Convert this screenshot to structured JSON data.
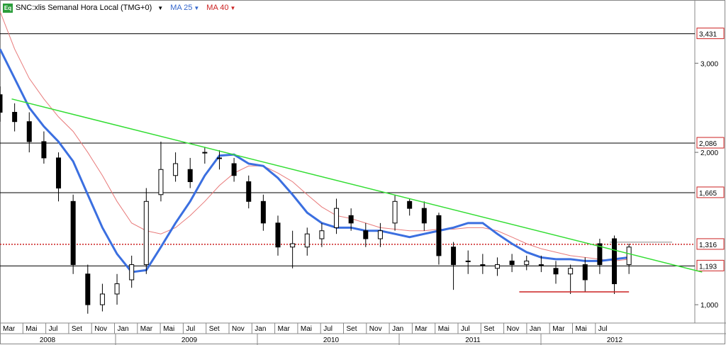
{
  "header": {
    "symbol_label": "SNC:xlis Semanal Hora Local (TMG+0)",
    "eq_icon": "Eq",
    "ma25_label": "MA 25",
    "ma40_label": "MA 40"
  },
  "colors": {
    "ma25": "#3b6fe0",
    "ma40": "#e87a7a",
    "trendline": "#33dd33",
    "support": "#cc2222",
    "dotted": "#cc2222",
    "candle": "#000000"
  },
  "chart_data": {
    "type": "candlestick",
    "y_scale": "log",
    "ylim": [
      0.92,
      4.0
    ],
    "y_ticks": [
      "3,000",
      "2,000",
      "1,000"
    ],
    "y_tick_values": [
      3.0,
      2.0,
      1.0
    ],
    "horizontal_levels": [
      {
        "value": 3.431,
        "label": "3,431",
        "style": "solid"
      },
      {
        "value": 2.086,
        "label": "2,086",
        "style": "solid"
      },
      {
        "value": 1.665,
        "label": "1,665",
        "style": "solid"
      },
      {
        "value": 1.316,
        "label": "1,316",
        "style": "dotted"
      },
      {
        "value": 1.193,
        "label": "1,193",
        "style": "solid"
      }
    ],
    "x_month_labels": [
      "Mar",
      "Mai",
      "Jul",
      "Set",
      "Nov",
      "Jan",
      "Mar",
      "Mai",
      "Jul",
      "Set",
      "Nov",
      "Jan",
      "Mar",
      "Mai",
      "Jul",
      "Set",
      "Nov",
      "Jan",
      "Mar",
      "Mai",
      "Jul",
      "Set",
      "Nov",
      "Jan",
      "Mar",
      "Mai",
      "Jul"
    ],
    "x_year_labels": [
      "2008",
      "2009",
      "2010",
      "2011",
      "2012"
    ],
    "trendline": {
      "x": [
        2008.08,
        2012.8
      ],
      "y": [
        2.55,
        1.16
      ]
    },
    "support_line": {
      "x": [
        2011.55,
        2012.3
      ],
      "y": [
        1.06,
        1.06
      ]
    },
    "ma25": {
      "x": [
        2008.0,
        2008.1,
        2008.2,
        2008.3,
        2008.4,
        2008.5,
        2008.6,
        2008.7,
        2008.8,
        2008.9,
        2009.0,
        2009.1,
        2009.2,
        2009.3,
        2009.4,
        2009.5,
        2009.6,
        2009.7,
        2009.8,
        2009.9,
        2010.0,
        2010.1,
        2010.2,
        2010.3,
        2010.4,
        2010.5,
        2010.6,
        2010.7,
        2010.8,
        2010.9,
        2011.0,
        2011.1,
        2011.2,
        2011.3,
        2011.4,
        2011.5,
        2011.6,
        2011.7,
        2011.8,
        2011.9,
        2012.0,
        2012.1,
        2012.2,
        2012.3
      ],
      "y": [
        3.2,
        2.8,
        2.45,
        2.25,
        2.1,
        1.92,
        1.65,
        1.42,
        1.26,
        1.16,
        1.17,
        1.3,
        1.45,
        1.6,
        1.8,
        1.97,
        1.98,
        1.9,
        1.88,
        1.78,
        1.65,
        1.52,
        1.45,
        1.42,
        1.42,
        1.4,
        1.4,
        1.38,
        1.36,
        1.38,
        1.4,
        1.42,
        1.45,
        1.45,
        1.38,
        1.32,
        1.27,
        1.24,
        1.23,
        1.23,
        1.22,
        1.22,
        1.23,
        1.24
      ]
    },
    "ma40": {
      "x": [
        2008.0,
        2008.1,
        2008.2,
        2008.3,
        2008.4,
        2008.5,
        2008.6,
        2008.7,
        2008.8,
        2008.9,
        2009.0,
        2009.1,
        2009.2,
        2009.3,
        2009.4,
        2009.5,
        2009.6,
        2009.7,
        2009.8,
        2009.9,
        2010.0,
        2010.1,
        2010.2,
        2010.3,
        2010.4,
        2010.5,
        2010.6,
        2010.7,
        2010.8,
        2010.9,
        2011.0,
        2011.1,
        2011.2,
        2011.3,
        2011.4,
        2011.5,
        2011.6,
        2011.7,
        2011.8,
        2011.9,
        2012.0,
        2012.1,
        2012.2,
        2012.3
      ],
      "y": [
        3.8,
        3.2,
        2.8,
        2.55,
        2.35,
        2.2,
        2.0,
        1.8,
        1.6,
        1.45,
        1.4,
        1.38,
        1.42,
        1.5,
        1.6,
        1.72,
        1.82,
        1.88,
        1.88,
        1.82,
        1.75,
        1.65,
        1.56,
        1.5,
        1.48,
        1.45,
        1.42,
        1.41,
        1.4,
        1.4,
        1.41,
        1.41,
        1.42,
        1.42,
        1.4,
        1.36,
        1.32,
        1.29,
        1.27,
        1.25,
        1.24,
        1.23,
        1.22,
        1.23
      ]
    },
    "candles": {
      "x": [
        2008.0,
        2008.1,
        2008.2,
        2008.3,
        2008.4,
        2008.5,
        2008.6,
        2008.7,
        2008.8,
        2008.9,
        2009.0,
        2009.1,
        2009.2,
        2009.3,
        2009.4,
        2009.5,
        2009.6,
        2009.7,
        2009.8,
        2009.9,
        2010.0,
        2010.1,
        2010.2,
        2010.3,
        2010.4,
        2010.5,
        2010.6,
        2010.7,
        2010.8,
        2010.9,
        2011.0,
        2011.1,
        2011.2,
        2011.3,
        2011.4,
        2011.5,
        2011.6,
        2011.7,
        2011.8,
        2011.9,
        2012.0,
        2012.1,
        2012.2,
        2012.3
      ],
      "open": [
        2.6,
        2.4,
        2.3,
        2.1,
        1.95,
        1.6,
        1.15,
        1.0,
        1.05,
        1.12,
        1.2,
        1.65,
        1.8,
        1.85,
        2.0,
        1.95,
        1.9,
        1.75,
        1.6,
        1.45,
        1.3,
        1.3,
        1.35,
        1.42,
        1.5,
        1.4,
        1.35,
        1.45,
        1.6,
        1.55,
        1.5,
        1.3,
        1.22,
        1.2,
        1.18,
        1.22,
        1.2,
        1.2,
        1.18,
        1.15,
        1.2,
        1.32,
        1.35,
        1.2
      ],
      "close": [
        2.4,
        2.3,
        2.1,
        1.95,
        1.7,
        1.2,
        1.0,
        1.05,
        1.1,
        1.2,
        1.6,
        1.85,
        1.9,
        1.75,
        2.0,
        1.95,
        1.8,
        1.6,
        1.45,
        1.3,
        1.32,
        1.38,
        1.4,
        1.55,
        1.45,
        1.35,
        1.4,
        1.6,
        1.55,
        1.45,
        1.25,
        1.2,
        1.22,
        1.2,
        1.2,
        1.2,
        1.22,
        1.2,
        1.15,
        1.18,
        1.12,
        1.2,
        1.1,
        1.3
      ],
      "high": [
        2.7,
        2.5,
        2.4,
        2.2,
        2.0,
        1.65,
        1.2,
        1.1,
        1.15,
        1.25,
        1.7,
        2.1,
        2.0,
        1.95,
        2.05,
        2.02,
        1.95,
        1.8,
        1.65,
        1.5,
        1.4,
        1.42,
        1.45,
        1.62,
        1.55,
        1.45,
        1.45,
        1.65,
        1.62,
        1.6,
        1.52,
        1.33,
        1.28,
        1.26,
        1.24,
        1.26,
        1.25,
        1.25,
        1.22,
        1.2,
        1.24,
        1.35,
        1.37,
        1.32
      ],
      "low": [
        2.3,
        2.2,
        2.0,
        1.9,
        1.6,
        1.15,
        0.96,
        0.97,
        1.0,
        1.08,
        1.15,
        1.6,
        1.75,
        1.7,
        1.9,
        1.85,
        1.75,
        1.55,
        1.4,
        1.25,
        1.18,
        1.25,
        1.3,
        1.38,
        1.4,
        1.3,
        1.3,
        1.4,
        1.5,
        1.4,
        1.2,
        1.07,
        1.15,
        1.15,
        1.14,
        1.16,
        1.17,
        1.16,
        1.1,
        1.05,
        1.06,
        1.15,
        1.05,
        1.15
      ]
    }
  }
}
